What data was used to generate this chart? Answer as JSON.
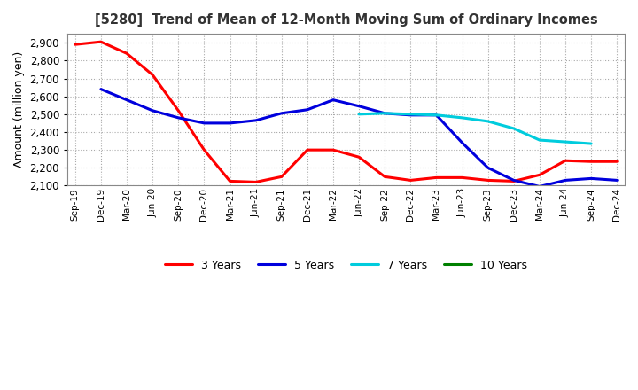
{
  "title": "[5280]  Trend of Mean of 12-Month Moving Sum of Ordinary Incomes",
  "ylabel": "Amount (million yen)",
  "background_color": "#ffffff",
  "grid_color": "#aaaaaa",
  "ylim": [
    2100,
    2950
  ],
  "yticks": [
    2100,
    2200,
    2300,
    2400,
    2500,
    2600,
    2700,
    2800,
    2900
  ],
  "x_labels": [
    "Sep-19",
    "Dec-19",
    "Mar-20",
    "Jun-20",
    "Sep-20",
    "Dec-20",
    "Mar-21",
    "Jun-21",
    "Sep-21",
    "Dec-21",
    "Mar-22",
    "Jun-22",
    "Sep-22",
    "Dec-22",
    "Mar-23",
    "Jun-23",
    "Sep-23",
    "Dec-23",
    "Mar-24",
    "Jun-24",
    "Sep-24",
    "Dec-24"
  ],
  "series": {
    "3 Years": {
      "color": "#ff0000",
      "data": [
        2890,
        2905,
        2840,
        2720,
        2520,
        2300,
        2125,
        2120,
        2150,
        2300,
        2300,
        2260,
        2150,
        2130,
        2145,
        2145,
        2130,
        2125,
        2160,
        2240,
        2235,
        2235
      ]
    },
    "5 Years": {
      "color": "#0000dd",
      "data": [
        null,
        2640,
        2580,
        2520,
        2480,
        2450,
        2450,
        2465,
        2505,
        2525,
        2580,
        2545,
        2505,
        2495,
        2495,
        2340,
        2200,
        2130,
        2095,
        2130,
        2140,
        2130
      ]
    },
    "7 Years": {
      "color": "#00ccdd",
      "data": [
        null,
        null,
        null,
        null,
        null,
        null,
        null,
        null,
        null,
        null,
        null,
        2500,
        2505,
        2500,
        2495,
        2480,
        2460,
        2420,
        2355,
        2345,
        2335,
        null
      ]
    },
    "10 Years": {
      "color": "#008000",
      "data": [
        null,
        null,
        null,
        null,
        null,
        null,
        null,
        null,
        null,
        null,
        null,
        null,
        null,
        null,
        null,
        null,
        null,
        null,
        null,
        null,
        null,
        null
      ]
    }
  },
  "legend_order": [
    "3 Years",
    "5 Years",
    "7 Years",
    "10 Years"
  ]
}
